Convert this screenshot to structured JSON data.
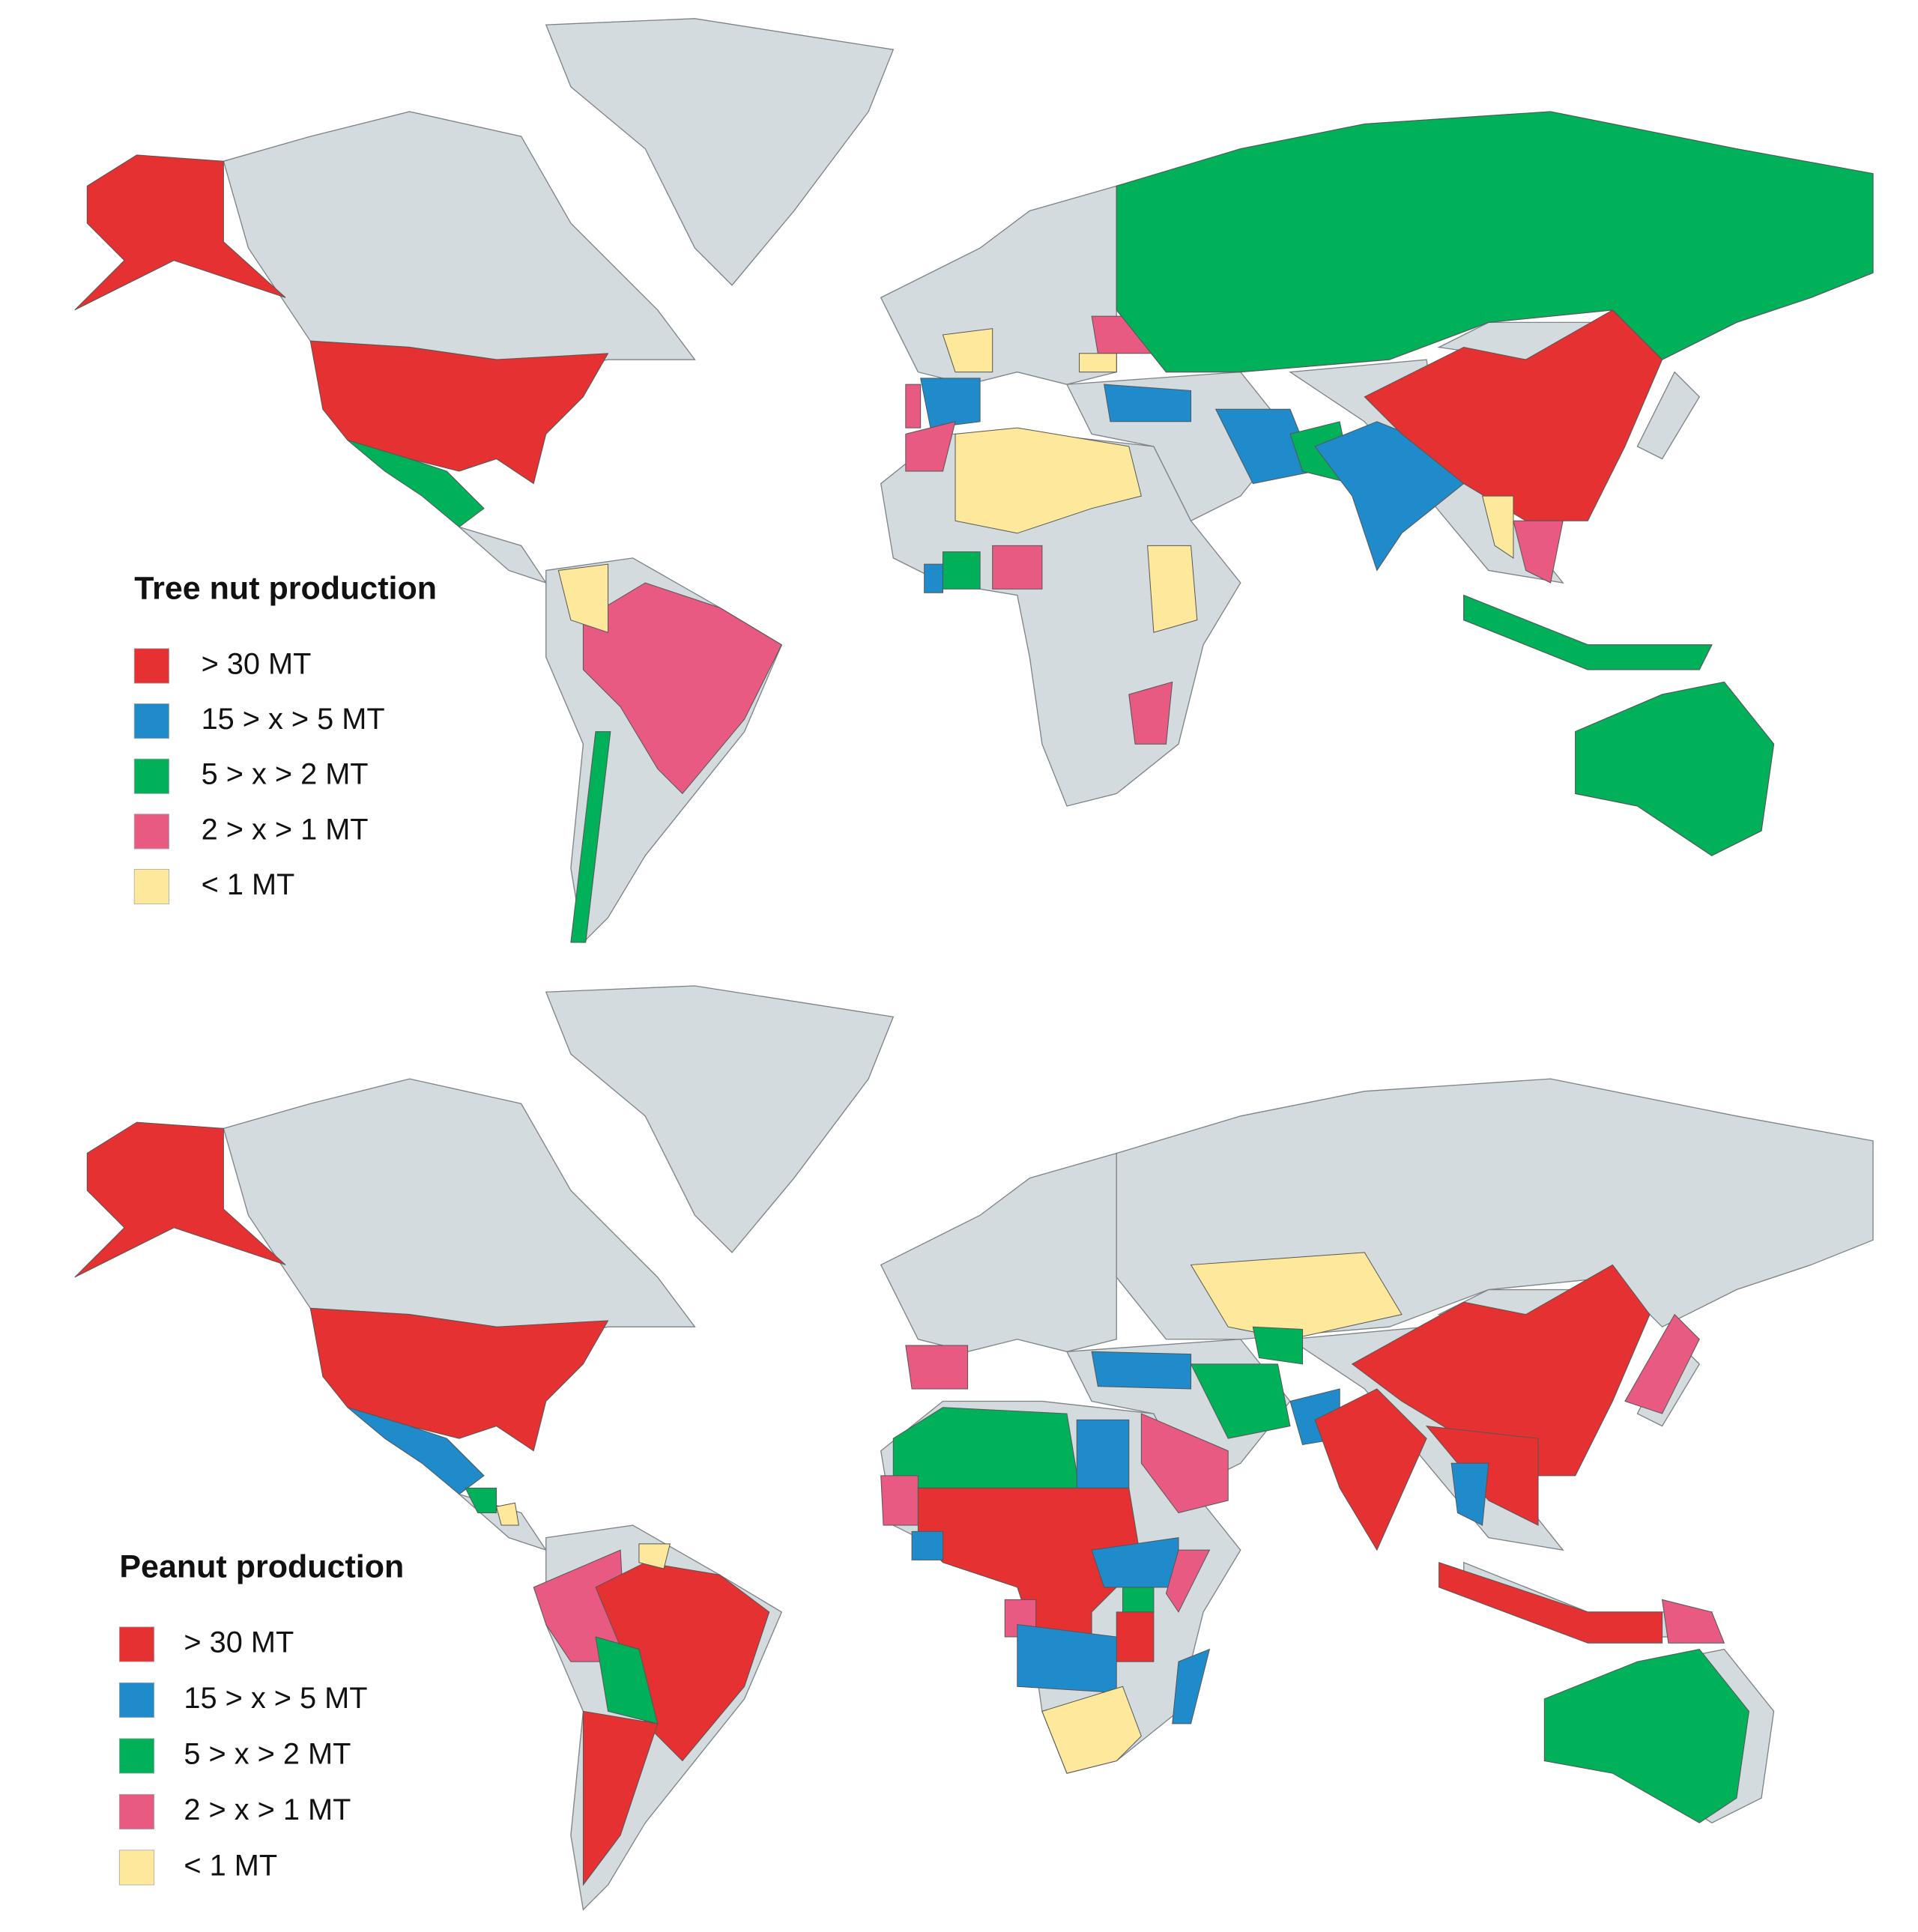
{
  "maps": [
    {
      "legend": {
        "title": "Tree nut production",
        "items": [
          {
            "label": "> 30 MT",
            "color": "#e53131"
          },
          {
            "label": "15 > x > 5 MT",
            "color": "#1f8bcb"
          },
          {
            "label": "5 > x > 2 MT",
            "color": "#00b15a"
          },
          {
            "label": "2 > x > 1 MT",
            "color": "#e95a83"
          },
          {
            "label": "< 1 MT",
            "color": "#fde89b"
          }
        ]
      }
    },
    {
      "legend": {
        "title": "Peanut production",
        "items": [
          {
            "label": "> 30 MT",
            "color": "#e53131"
          },
          {
            "label": "15 > x > 5 MT",
            "color": "#1f8bcb"
          },
          {
            "label": "5 > x > 2 MT",
            "color": "#00b15a"
          },
          {
            "label": "2 > x > 1 MT",
            "color": "#e95a83"
          },
          {
            "label": "< 1 MT",
            "color": "#fde89b"
          }
        ]
      }
    }
  ]
}
